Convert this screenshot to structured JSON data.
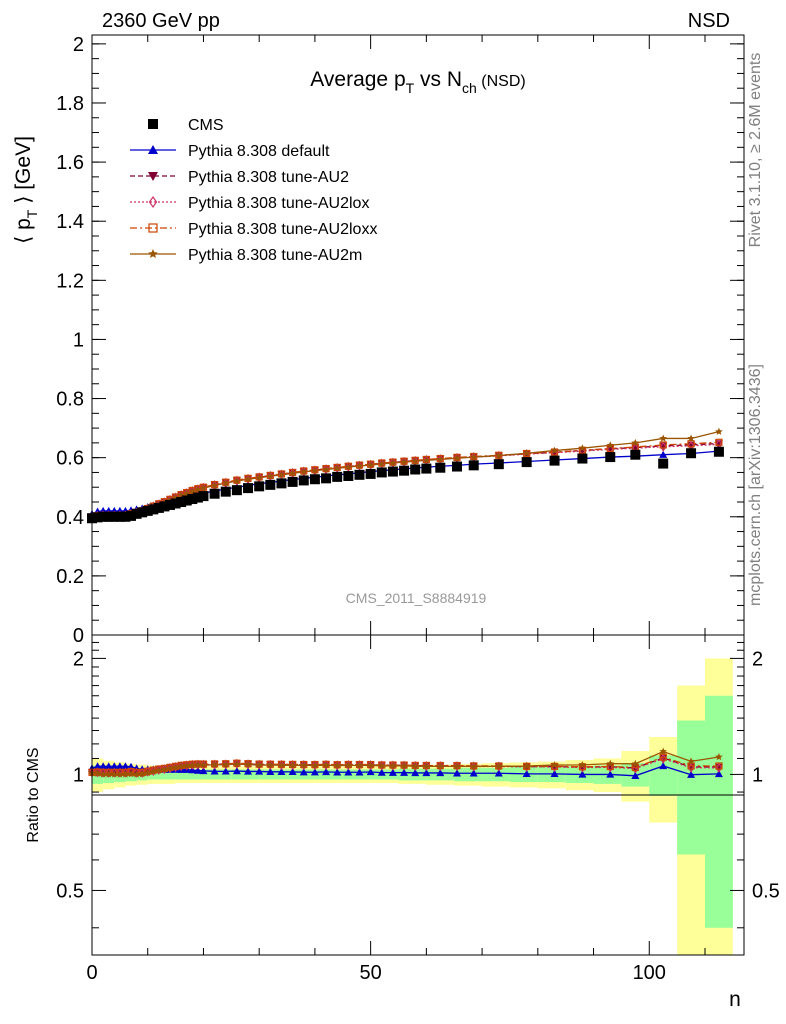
{
  "header": {
    "energy_label": "2360 GeV pp",
    "process_label": "NSD"
  },
  "side_labels": {
    "rivet": "Rivet 3.1.10, ≥ 2.6M events",
    "mcplots": "mcplots.cern.ch [arXiv:1306.3436]"
  },
  "watermark": "CMS_2011_S8884919",
  "chart_data": [
    {
      "panel": "main",
      "type": "scatter",
      "title": "Average pT vs Nch (NSD)",
      "title_parts": {
        "main": "Average p",
        "sub1": "T",
        "mid": " vs N",
        "sub2": "ch",
        "suffix": " (NSD)"
      },
      "xlabel": "n",
      "ylabel": "⟨ pT ⟩ [GeV]",
      "ylabel_parts": {
        "pre": "⟨ p",
        "sub": "T",
        "post": " ⟩ [GeV]"
      },
      "xlim": [
        0,
        117
      ],
      "ylim": [
        0,
        2.03
      ],
      "x_ticks": [
        "0",
        "50",
        "100"
      ],
      "x_tick_values": [
        0,
        50,
        100
      ],
      "y_ticks": [
        "0",
        "0.2",
        "0.4",
        "0.6",
        "0.8",
        "1",
        "1.2",
        "1.4",
        "1.6",
        "1.8",
        "2"
      ],
      "y_tick_values": [
        0,
        0.2,
        0.4,
        0.6,
        0.8,
        1.0,
        1.2,
        1.4,
        1.6,
        1.8,
        2.0
      ],
      "legend_position": "top-left",
      "series": [
        {
          "name": "CMS",
          "color": "#000000",
          "marker": "square-filled",
          "line": "none",
          "x": [
            0,
            1,
            2,
            3,
            4,
            5,
            6,
            7,
            8,
            9,
            10,
            11,
            12,
            13,
            14,
            15,
            16,
            17,
            18,
            19,
            20,
            22,
            24,
            26,
            28,
            30,
            32,
            34,
            36,
            38,
            40,
            42,
            44,
            46,
            48,
            50,
            52,
            54,
            56,
            58,
            60,
            62.5,
            65.5,
            68.5,
            73,
            78,
            83,
            88,
            93,
            97.5,
            102.5,
            107.5,
            112.5
          ],
          "y": [
            0.395,
            0.398,
            0.4,
            0.4,
            0.4,
            0.4,
            0.4,
            0.403,
            0.41,
            0.415,
            0.42,
            0.425,
            0.43,
            0.435,
            0.44,
            0.445,
            0.45,
            0.455,
            0.46,
            0.465,
            0.47,
            0.478,
            0.485,
            0.49,
            0.497,
            0.503,
            0.508,
            0.513,
            0.518,
            0.523,
            0.527,
            0.53,
            0.535,
            0.538,
            0.542,
            0.545,
            0.55,
            0.553,
            0.556,
            0.56,
            0.563,
            0.566,
            0.57,
            0.574,
            0.578,
            0.585,
            0.59,
            0.597,
            0.602,
            0.61,
            0.58,
            0.615,
            0.62
          ]
        },
        {
          "name": "Pythia 8.308 default",
          "color": "#0000cc",
          "marker": "triangle-up",
          "line": "solid",
          "x": [
            0,
            1,
            2,
            3,
            4,
            5,
            6,
            7,
            8,
            9,
            10,
            11,
            12,
            13,
            14,
            15,
            16,
            17,
            18,
            19,
            20,
            22,
            24,
            26,
            28,
            30,
            32,
            34,
            36,
            38,
            40,
            42,
            44,
            46,
            48,
            50,
            52,
            54,
            56,
            58,
            60,
            62.5,
            65.5,
            68.5,
            73,
            78,
            83,
            88,
            93,
            97.5,
            102.5,
            107.5,
            112.5
          ],
          "y": [
            0.41,
            0.418,
            0.42,
            0.42,
            0.42,
            0.42,
            0.42,
            0.422,
            0.425,
            0.428,
            0.433,
            0.438,
            0.443,
            0.448,
            0.453,
            0.458,
            0.463,
            0.468,
            0.472,
            0.476,
            0.48,
            0.487,
            0.494,
            0.5,
            0.506,
            0.512,
            0.516,
            0.521,
            0.526,
            0.53,
            0.534,
            0.538,
            0.542,
            0.545,
            0.549,
            0.553,
            0.556,
            0.559,
            0.562,
            0.565,
            0.568,
            0.571,
            0.574,
            0.578,
            0.582,
            0.587,
            0.592,
            0.597,
            0.602,
            0.605,
            0.61,
            0.614,
            0.622
          ]
        },
        {
          "name": "Pythia 8.308 tune-AU2",
          "color": "#800033",
          "marker": "triangle-down",
          "line": "dashed",
          "x": [
            0,
            1,
            2,
            3,
            4,
            5,
            6,
            7,
            8,
            9,
            10,
            11,
            12,
            13,
            14,
            15,
            16,
            17,
            18,
            19,
            20,
            22,
            24,
            26,
            28,
            30,
            32,
            34,
            36,
            38,
            40,
            42,
            44,
            46,
            48,
            50,
            52,
            54,
            56,
            58,
            60,
            62.5,
            65.5,
            68.5,
            73,
            78,
            83,
            88,
            93,
            97.5,
            102.5,
            107.5,
            112.5
          ],
          "y": [
            0.4,
            0.404,
            0.405,
            0.405,
            0.405,
            0.405,
            0.405,
            0.41,
            0.415,
            0.42,
            0.428,
            0.435,
            0.443,
            0.45,
            0.458,
            0.466,
            0.474,
            0.481,
            0.488,
            0.494,
            0.499,
            0.508,
            0.516,
            0.523,
            0.529,
            0.534,
            0.539,
            0.544,
            0.549,
            0.554,
            0.558,
            0.562,
            0.566,
            0.57,
            0.574,
            0.577,
            0.581,
            0.584,
            0.587,
            0.59,
            0.593,
            0.596,
            0.6,
            0.603,
            0.607,
            0.613,
            0.618,
            0.624,
            0.63,
            0.634,
            0.64,
            0.643,
            0.648
          ]
        },
        {
          "name": "Pythia 8.308 tune-AU2lox",
          "color": "#cc3366",
          "marker": "diamond-open",
          "line": "dotted",
          "x": [
            0,
            1,
            2,
            3,
            4,
            5,
            6,
            7,
            8,
            9,
            10,
            11,
            12,
            13,
            14,
            15,
            16,
            17,
            18,
            19,
            20,
            22,
            24,
            26,
            28,
            30,
            32,
            34,
            36,
            38,
            40,
            42,
            44,
            46,
            48,
            50,
            52,
            54,
            56,
            58,
            60,
            62.5,
            65.5,
            68.5,
            73,
            78,
            83,
            88,
            93,
            97.5,
            102.5,
            107.5,
            112.5
          ],
          "y": [
            0.4,
            0.403,
            0.404,
            0.404,
            0.404,
            0.404,
            0.404,
            0.409,
            0.414,
            0.419,
            0.427,
            0.434,
            0.442,
            0.449,
            0.457,
            0.465,
            0.473,
            0.48,
            0.487,
            0.493,
            0.498,
            0.507,
            0.515,
            0.522,
            0.528,
            0.533,
            0.538,
            0.543,
            0.548,
            0.553,
            0.557,
            0.561,
            0.565,
            0.569,
            0.573,
            0.576,
            0.58,
            0.583,
            0.586,
            0.589,
            0.592,
            0.595,
            0.599,
            0.602,
            0.606,
            0.612,
            0.617,
            0.622,
            0.628,
            0.632,
            0.637,
            0.64,
            0.645
          ]
        },
        {
          "name": "Pythia 8.308 tune-AU2loxx",
          "color": "#cc4400",
          "marker": "square-open",
          "line": "dashdot",
          "x": [
            0,
            1,
            2,
            3,
            4,
            5,
            6,
            7,
            8,
            9,
            10,
            11,
            12,
            13,
            14,
            15,
            16,
            17,
            18,
            19,
            20,
            22,
            24,
            26,
            28,
            30,
            32,
            34,
            36,
            38,
            40,
            42,
            44,
            46,
            48,
            50,
            52,
            54,
            56,
            58,
            60,
            62.5,
            65.5,
            68.5,
            73,
            78,
            83,
            88,
            93,
            97.5,
            102.5,
            107.5,
            112.5
          ],
          "y": [
            0.4,
            0.404,
            0.405,
            0.405,
            0.405,
            0.405,
            0.405,
            0.41,
            0.415,
            0.42,
            0.428,
            0.436,
            0.444,
            0.451,
            0.459,
            0.467,
            0.475,
            0.482,
            0.489,
            0.495,
            0.5,
            0.509,
            0.517,
            0.524,
            0.53,
            0.535,
            0.54,
            0.545,
            0.55,
            0.555,
            0.559,
            0.563,
            0.567,
            0.571,
            0.575,
            0.578,
            0.582,
            0.585,
            0.588,
            0.591,
            0.594,
            0.597,
            0.601,
            0.604,
            0.608,
            0.614,
            0.619,
            0.625,
            0.631,
            0.636,
            0.643,
            0.647,
            0.652
          ]
        },
        {
          "name": "Pythia 8.308 tune-AU2m",
          "color": "#995500",
          "marker": "star",
          "line": "solid",
          "x": [
            0,
            1,
            2,
            3,
            4,
            5,
            6,
            7,
            8,
            9,
            10,
            11,
            12,
            13,
            14,
            15,
            16,
            17,
            18,
            19,
            20,
            22,
            24,
            26,
            28,
            30,
            32,
            34,
            36,
            38,
            40,
            42,
            44,
            46,
            48,
            50,
            52,
            54,
            56,
            58,
            60,
            62.5,
            65.5,
            68.5,
            73,
            78,
            83,
            88,
            93,
            97.5,
            102.5,
            107.5,
            112.5
          ],
          "y": [
            0.398,
            0.4,
            0.4,
            0.4,
            0.4,
            0.4,
            0.4,
            0.404,
            0.41,
            0.416,
            0.424,
            0.432,
            0.44,
            0.448,
            0.456,
            0.464,
            0.472,
            0.479,
            0.486,
            0.492,
            0.497,
            0.506,
            0.514,
            0.521,
            0.527,
            0.532,
            0.537,
            0.542,
            0.547,
            0.552,
            0.556,
            0.56,
            0.564,
            0.568,
            0.572,
            0.575,
            0.579,
            0.582,
            0.585,
            0.588,
            0.591,
            0.594,
            0.598,
            0.602,
            0.607,
            0.615,
            0.624,
            0.632,
            0.642,
            0.65,
            0.665,
            0.665,
            0.688
          ]
        }
      ]
    },
    {
      "panel": "ratio",
      "type": "line",
      "ylabel": "Ratio to CMS",
      "xlim": [
        0,
        117
      ],
      "ylim": [
        0.34,
        2.3
      ],
      "y_scale": "log",
      "x_ticks": [
        "0",
        "50",
        "100"
      ],
      "x_tick_values": [
        0,
        50,
        100
      ],
      "y_ticks": [
        "0.5",
        "1",
        "2"
      ],
      "y_tick_values": [
        0.5,
        1,
        2
      ],
      "bands": {
        "x_edges": [
          0,
          2,
          4,
          6,
          8,
          10,
          15,
          20,
          25,
          30,
          35,
          40,
          45,
          50,
          55,
          60,
          65,
          70,
          75,
          80,
          85,
          90,
          95,
          100,
          105,
          110,
          115
        ],
        "stat_half_width": [
          0.055,
          0.05,
          0.045,
          0.04,
          0.035,
          0.03,
          0.03,
          0.03,
          0.03,
          0.03,
          0.03,
          0.03,
          0.03,
          0.03,
          0.035,
          0.035,
          0.04,
          0.04,
          0.045,
          0.045,
          0.05,
          0.055,
          0.07,
          0.12,
          0.38,
          0.6
        ],
        "total_half_width": [
          0.1,
          0.085,
          0.075,
          0.065,
          0.06,
          0.055,
          0.05,
          0.05,
          0.05,
          0.05,
          0.05,
          0.05,
          0.05,
          0.05,
          0.055,
          0.06,
          0.065,
          0.07,
          0.075,
          0.08,
          0.09,
          0.1,
          0.15,
          0.25,
          0.7,
          1.0
        ]
      }
    }
  ]
}
